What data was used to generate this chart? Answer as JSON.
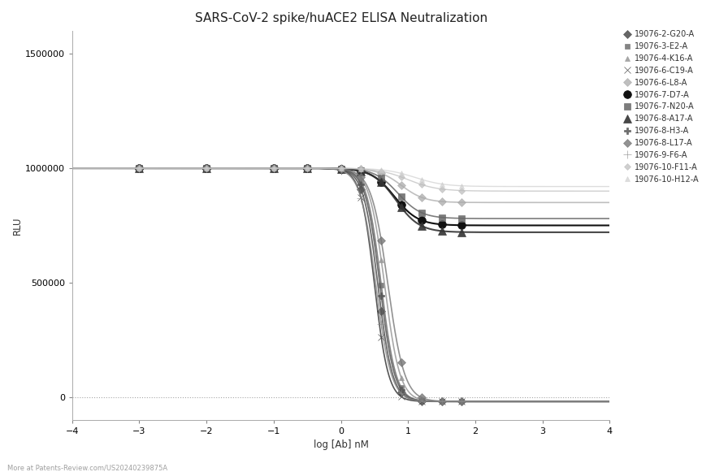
{
  "title": "SARS-CoV-2 spike/huACE2 ELISA Neutralization",
  "xlabel": "log [Ab] nM",
  "ylabel": "RLU",
  "xlim": [
    -4,
    4
  ],
  "ylim": [
    -100000,
    1600000
  ],
  "yticks": [
    0,
    500000,
    1000000,
    1500000
  ],
  "xticks": [
    -4,
    -3,
    -2,
    -1,
    0,
    1,
    2,
    3,
    4
  ],
  "background_color": "#ffffff",
  "watermark": "More at Patents-Review.com/US20240239875A",
  "series": [
    {
      "label": "19076-2-G20-A",
      "ec50": 0.55,
      "hill": 4.0,
      "top": 1000000,
      "bottom": -20000,
      "color": "#555555",
      "marker": "D",
      "markersize": 5,
      "lw": 1.2,
      "alpha": 0.9
    },
    {
      "label": "19076-3-E2-A",
      "ec50": 0.6,
      "hill": 4.0,
      "top": 1000000,
      "bottom": -20000,
      "color": "#777777",
      "marker": "s",
      "markersize": 5,
      "lw": 1.2,
      "alpha": 0.9
    },
    {
      "label": "19076-4-K16-A",
      "ec50": 0.65,
      "hill": 3.8,
      "top": 1000000,
      "bottom": -20000,
      "color": "#999999",
      "marker": "^",
      "markersize": 5,
      "lw": 1.2,
      "alpha": 0.85
    },
    {
      "label": "19076-6-C19-A",
      "ec50": 0.5,
      "hill": 4.2,
      "top": 1000000,
      "bottom": -20000,
      "color": "#444444",
      "marker": "x",
      "markersize": 6,
      "lw": 1.2,
      "alpha": 0.9
    },
    {
      "label": "19076-6-L8-A",
      "ec50": 0.9,
      "hill": 2.5,
      "top": 1000000,
      "bottom": 850000,
      "color": "#aaaaaa",
      "marker": "D",
      "markersize": 5,
      "lw": 1.2,
      "alpha": 0.75
    },
    {
      "label": "19076-7-D7-A",
      "ec50": 0.8,
      "hill": 2.5,
      "top": 1000000,
      "bottom": 750000,
      "color": "#111111",
      "marker": "o",
      "markersize": 7,
      "lw": 1.5,
      "alpha": 1.0
    },
    {
      "label": "19076-7-N20-A",
      "ec50": 0.85,
      "hill": 2.5,
      "top": 1000000,
      "bottom": 780000,
      "color": "#666666",
      "marker": "s",
      "markersize": 6,
      "lw": 1.2,
      "alpha": 0.85
    },
    {
      "label": "19076-8-A17-A",
      "ec50": 0.82,
      "hill": 2.5,
      "top": 1000000,
      "bottom": 720000,
      "color": "#333333",
      "marker": "^",
      "markersize": 7,
      "lw": 1.5,
      "alpha": 0.9
    },
    {
      "label": "19076-8-H3-A",
      "ec50": 0.58,
      "hill": 4.0,
      "top": 1000000,
      "bottom": -20000,
      "color": "#555555",
      "marker": "P",
      "markersize": 6,
      "lw": 1.2,
      "alpha": 0.85
    },
    {
      "label": "19076-8-L17-A",
      "ec50": 0.7,
      "hill": 3.5,
      "top": 1000000,
      "bottom": -20000,
      "color": "#777777",
      "marker": "D",
      "markersize": 5,
      "lw": 1.2,
      "alpha": 0.8
    },
    {
      "label": "19076-9-F6-A",
      "ec50": 0.52,
      "hill": 3.8,
      "top": 1000000,
      "bottom": -20000,
      "color": "#888888",
      "marker": "+",
      "markersize": 7,
      "lw": 1.2,
      "alpha": 0.8
    },
    {
      "label": "19076-10-F11-A",
      "ec50": 1.0,
      "hill": 2.0,
      "top": 1000000,
      "bottom": 900000,
      "color": "#bbbbbb",
      "marker": "D",
      "markersize": 4,
      "lw": 1.0,
      "alpha": 0.7
    },
    {
      "label": "19076-10-H12-A",
      "ec50": 1.1,
      "hill": 2.0,
      "top": 1000000,
      "bottom": 920000,
      "color": "#cccccc",
      "marker": "^",
      "markersize": 4,
      "lw": 1.0,
      "alpha": 0.65
    }
  ]
}
